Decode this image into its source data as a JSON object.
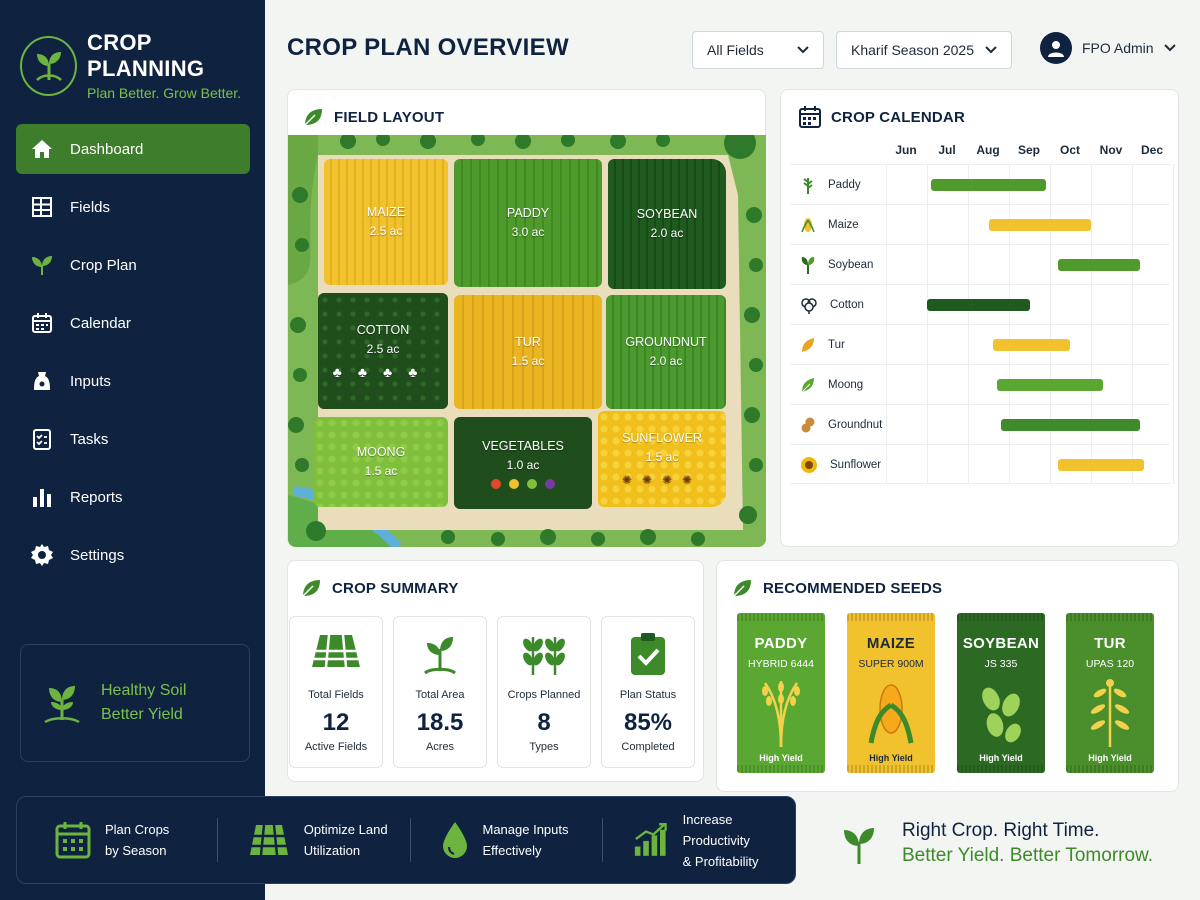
{
  "brand": {
    "title": "CROP PLANNING",
    "tagline": "Plan Better. Grow Better."
  },
  "nav": [
    {
      "label": "Dashboard",
      "icon": "home-icon",
      "active": true
    },
    {
      "label": "Fields",
      "icon": "grid-icon"
    },
    {
      "label": "Crop Plan",
      "icon": "leaf-icon"
    },
    {
      "label": "Calendar",
      "icon": "calendar-icon"
    },
    {
      "label": "Inputs",
      "icon": "input-bag-icon"
    },
    {
      "label": "Tasks",
      "icon": "checklist-icon"
    },
    {
      "label": "Reports",
      "icon": "bar-chart-icon"
    },
    {
      "label": "Settings",
      "icon": "gear-icon"
    }
  ],
  "soil_card": {
    "line1": "Healthy Soil",
    "line2": "Better Yield"
  },
  "header": {
    "title": "CROP PLAN OVERVIEW",
    "field_filter": "All Fields",
    "season_filter": "Kharif Season 2025",
    "user": "FPO Admin"
  },
  "field_layout": {
    "title": "FIELD LAYOUT",
    "plots": [
      {
        "name": "MAIZE",
        "area": "2.5 ac",
        "color": "#f2c12e"
      },
      {
        "name": "PADDY",
        "area": "3.0 ac",
        "color": "#4f9a2c"
      },
      {
        "name": "SOYBEAN",
        "area": "2.0 ac",
        "color": "#1f5a1e"
      },
      {
        "name": "COTTON",
        "area": "2.5 ac",
        "color": "#1f4d1c"
      },
      {
        "name": "TUR",
        "area": "1.5 ac",
        "color": "#e9b521"
      },
      {
        "name": "GROUNDNUT",
        "area": "2.0 ac",
        "color": "#4a9a2e"
      },
      {
        "name": "MOONG",
        "area": "1.5 ac",
        "color": "#7fbf3c"
      },
      {
        "name": "VEGETABLES",
        "area": "1.0 ac",
        "color": "#1f4d1c"
      },
      {
        "name": "SUNFLOWER",
        "area": "1.5 ac",
        "color": "#f0bf1c"
      }
    ]
  },
  "crop_calendar": {
    "title": "CROP CALENDAR",
    "months": [
      "Jun",
      "Jul",
      "Aug",
      "Sep",
      "Oct",
      "Nov",
      "Dec"
    ],
    "crops": [
      {
        "name": "Paddy",
        "start": 1.1,
        "end": 3.9,
        "color": "#4f9a2c"
      },
      {
        "name": "Maize",
        "start": 2.5,
        "end": 5.0,
        "color": "#f2c12e"
      },
      {
        "name": "Soybean",
        "start": 4.2,
        "end": 6.2,
        "color": "#4f9a2c"
      },
      {
        "name": "Cotton",
        "start": 1.0,
        "end": 3.5,
        "color": "#1f5a1e"
      },
      {
        "name": "Tur",
        "start": 2.6,
        "end": 4.5,
        "color": "#f2c12e"
      },
      {
        "name": "Moong",
        "start": 2.7,
        "end": 5.3,
        "color": "#5aa832"
      },
      {
        "name": "Groundnut",
        "start": 2.8,
        "end": 6.2,
        "color": "#3f8a2a"
      },
      {
        "name": "Sunflower",
        "start": 4.2,
        "end": 6.3,
        "color": "#f2c12e"
      }
    ]
  },
  "crop_summary": {
    "title": "CROP SUMMARY",
    "stats": [
      {
        "label": "Total Fields",
        "value": "12",
        "sub": "Active Fields",
        "icon": "field-grid-icon"
      },
      {
        "label": "Total Area",
        "value": "18.5",
        "sub": "Acres",
        "icon": "sprout-icon"
      },
      {
        "label": "Crops Planned",
        "value": "8",
        "sub": "Types",
        "icon": "crops-icon"
      },
      {
        "label": "Plan Status",
        "value": "85%",
        "sub": "Completed",
        "icon": "clipboard-check-icon"
      }
    ]
  },
  "seeds": {
    "title": "RECOMMENDED SEEDS",
    "items": [
      {
        "name": "PADDY",
        "variety": "HYBRID 6444",
        "tag": "High Yield",
        "color": "#5aa832",
        "text": "#ffffff"
      },
      {
        "name": "MAIZE",
        "variety": "SUPER 900M",
        "tag": "High Yield",
        "color": "#f2c12e",
        "text": "#1c2b3a"
      },
      {
        "name": "SOYBEAN",
        "variety": "JS 335",
        "tag": "High Yield",
        "color": "#2c6a24",
        "text": "#ffffff"
      },
      {
        "name": "TUR",
        "variety": "UPAS 120",
        "tag": "High Yield",
        "color": "#4a8f2c",
        "text": "#ffffff"
      }
    ]
  },
  "benefits": [
    {
      "line1": "Plan Crops",
      "line2": "by Season",
      "icon": "calendar-icon"
    },
    {
      "line1": "Optimize Land",
      "line2": "Utilization",
      "icon": "land-grid-icon"
    },
    {
      "line1": "Manage Inputs",
      "line2": "Effectively",
      "icon": "water-drop-icon"
    },
    {
      "line1": "Increase Productivity",
      "line2": "& Profitability",
      "icon": "growth-chart-icon"
    }
  ],
  "slogan": {
    "line1": "Right Crop. Right Time.",
    "line2": "Better Yield. Better Tomorrow."
  }
}
